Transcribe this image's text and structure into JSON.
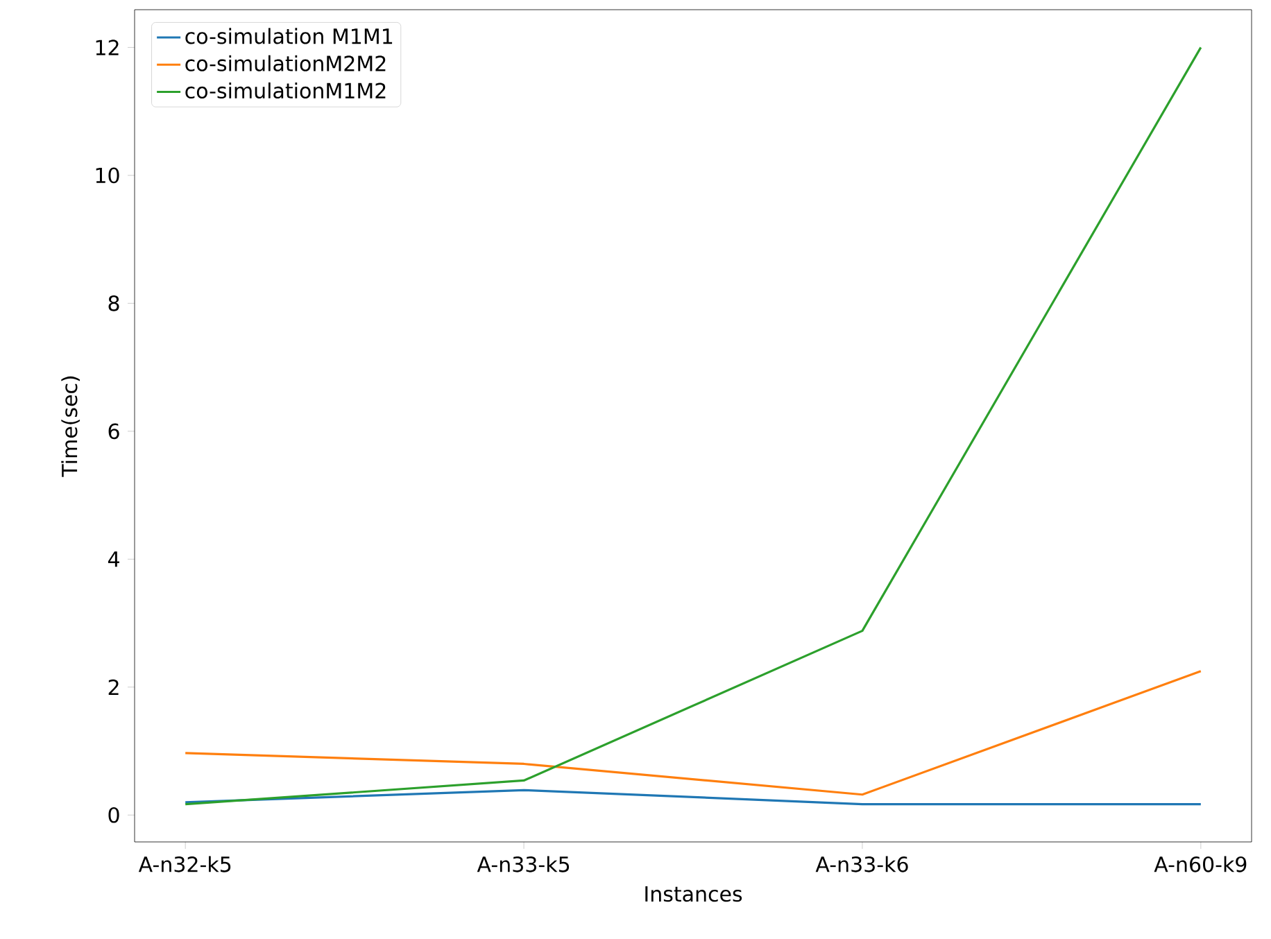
{
  "chart_data": {
    "type": "line",
    "xlabel": "Instances",
    "ylabel": "Time(sec)",
    "categories": [
      "A-n32-k5",
      "A-n33-k5",
      "A-n33-k6",
      "A-n60-k9"
    ],
    "series": [
      {
        "name": "co-simulation M1M1",
        "color": "#1f77b4",
        "values": [
          0.2,
          0.39,
          0.17,
          0.17
        ]
      },
      {
        "name": "co-simulationM2M2",
        "color": "#ff7f0e",
        "values": [
          0.97,
          0.8,
          0.32,
          2.25
        ]
      },
      {
        "name": "co-simulationM1M2",
        "color": "#2ca02c",
        "values": [
          0.17,
          0.54,
          2.88,
          12.0
        ]
      }
    ],
    "ylim": [
      -0.42,
      12.59
    ],
    "yticks": [
      0,
      2,
      4,
      6,
      8,
      10,
      12
    ],
    "legend": "top left",
    "grid": false,
    "marker": "none",
    "line_style": "solid"
  }
}
